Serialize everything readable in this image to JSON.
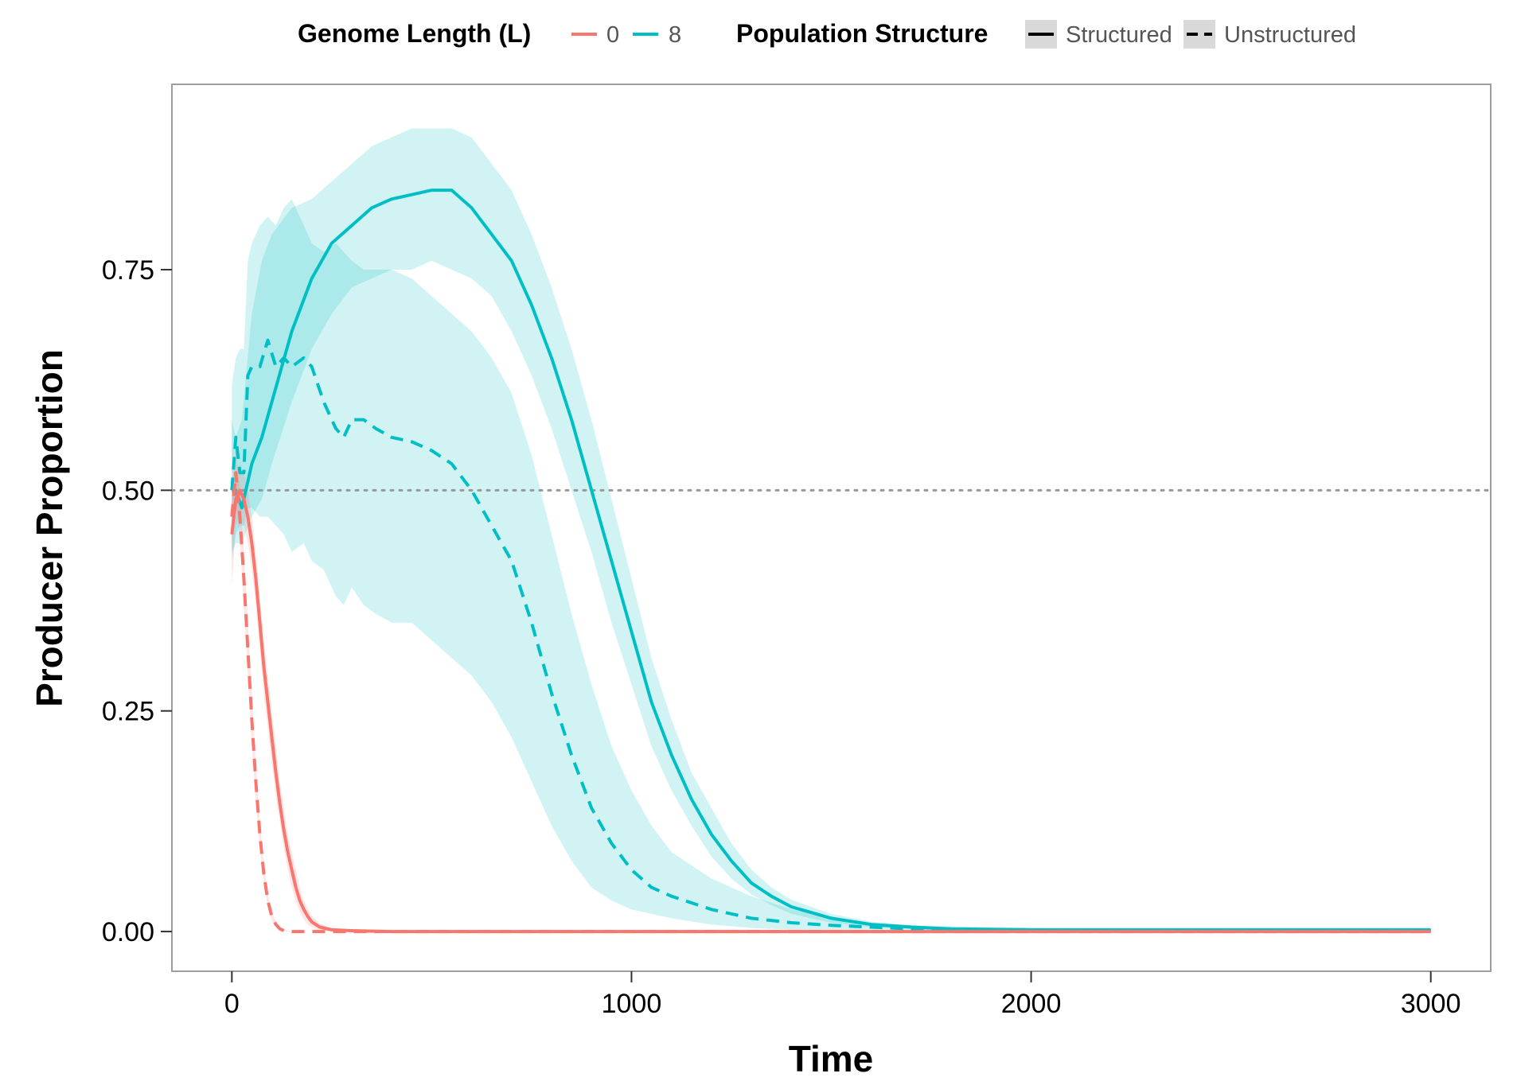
{
  "chart_data": {
    "type": "line",
    "title": "",
    "xlabel": "Time",
    "ylabel": "Producer Proportion",
    "xlim": [
      -150,
      3150
    ],
    "ylim": [
      -0.045,
      0.96
    ],
    "x_ticks": [
      0,
      1000,
      2000,
      3000
    ],
    "x_tick_labels": [
      "0",
      "1000",
      "2000",
      "3000"
    ],
    "y_ticks": [
      0,
      0.25,
      0.5,
      0.75
    ],
    "y_tick_labels": [
      "0.00",
      "0.25",
      "0.50",
      "0.75"
    ],
    "reference_line": {
      "y": 0.5,
      "style": "dotted",
      "color": "#999999"
    },
    "grid": false,
    "legend": {
      "placement": "top",
      "groups": [
        {
          "title": "Genome Length (L)",
          "items": [
            {
              "label": "0",
              "color": "#F8766D"
            },
            {
              "label": "8",
              "color": "#00BFC4"
            }
          ]
        },
        {
          "title": "Population Structure",
          "items": [
            {
              "label": "Structured",
              "linetype": "solid"
            },
            {
              "label": "Unstructured",
              "linetype": "dashed"
            }
          ]
        }
      ]
    },
    "series": [
      {
        "genome_length": "8",
        "structure": "Structured",
        "color": "#00BFC4",
        "linetype": "solid",
        "x": [
          0,
          10,
          25,
          50,
          75,
          100,
          150,
          200,
          250,
          300,
          350,
          400,
          450,
          500,
          550,
          600,
          650,
          700,
          750,
          800,
          850,
          900,
          950,
          1000,
          1050,
          1100,
          1150,
          1200,
          1250,
          1300,
          1350,
          1400,
          1500,
          1600,
          1700,
          1800,
          2000,
          2500,
          3000
        ],
        "y": [
          0.5,
          0.5,
          0.48,
          0.53,
          0.56,
          0.6,
          0.68,
          0.74,
          0.78,
          0.8,
          0.82,
          0.83,
          0.835,
          0.84,
          0.84,
          0.82,
          0.79,
          0.76,
          0.71,
          0.65,
          0.58,
          0.5,
          0.42,
          0.34,
          0.26,
          0.2,
          0.15,
          0.11,
          0.08,
          0.055,
          0.04,
          0.028,
          0.015,
          0.008,
          0.005,
          0.003,
          0.002,
          0.002,
          0.002
        ],
        "lower": [
          0.43,
          0.44,
          0.44,
          0.47,
          0.49,
          0.53,
          0.6,
          0.66,
          0.7,
          0.73,
          0.74,
          0.75,
          0.75,
          0.76,
          0.75,
          0.74,
          0.72,
          0.68,
          0.63,
          0.57,
          0.5,
          0.43,
          0.35,
          0.28,
          0.21,
          0.16,
          0.12,
          0.085,
          0.06,
          0.042,
          0.03,
          0.02,
          0.01,
          0.005,
          0.003,
          0.002,
          0.001,
          0.001,
          0.001
        ],
        "upper": [
          0.58,
          0.56,
          0.58,
          0.7,
          0.76,
          0.79,
          0.82,
          0.83,
          0.85,
          0.87,
          0.89,
          0.9,
          0.91,
          0.91,
          0.91,
          0.9,
          0.87,
          0.84,
          0.79,
          0.73,
          0.66,
          0.58,
          0.49,
          0.4,
          0.31,
          0.24,
          0.18,
          0.14,
          0.1,
          0.07,
          0.05,
          0.036,
          0.02,
          0.011,
          0.007,
          0.004,
          0.003,
          0.003,
          0.003
        ]
      },
      {
        "genome_length": "8",
        "structure": "Unstructured",
        "color": "#00BFC4",
        "linetype": "dashed",
        "x": [
          0,
          10,
          20,
          30,
          40,
          50,
          70,
          90,
          110,
          130,
          150,
          180,
          200,
          230,
          260,
          280,
          300,
          330,
          360,
          400,
          450,
          500,
          550,
          600,
          650,
          700,
          750,
          800,
          850,
          900,
          950,
          1000,
          1050,
          1100,
          1200,
          1300,
          1400,
          1500,
          1600,
          1700,
          2000,
          2500,
          3000
        ],
        "y": [
          0.5,
          0.56,
          0.52,
          0.52,
          0.63,
          0.64,
          0.64,
          0.67,
          0.64,
          0.65,
          0.64,
          0.65,
          0.64,
          0.6,
          0.57,
          0.56,
          0.58,
          0.58,
          0.57,
          0.56,
          0.555,
          0.545,
          0.53,
          0.5,
          0.46,
          0.42,
          0.35,
          0.27,
          0.2,
          0.14,
          0.1,
          0.07,
          0.05,
          0.04,
          0.025,
          0.015,
          0.01,
          0.007,
          0.005,
          0.003,
          0.002,
          0.001,
          0.001
        ],
        "lower": [
          0.42,
          0.45,
          0.46,
          0.46,
          0.48,
          0.48,
          0.47,
          0.47,
          0.46,
          0.45,
          0.43,
          0.44,
          0.42,
          0.41,
          0.38,
          0.37,
          0.39,
          0.37,
          0.36,
          0.35,
          0.35,
          0.33,
          0.31,
          0.29,
          0.26,
          0.22,
          0.17,
          0.12,
          0.08,
          0.05,
          0.035,
          0.025,
          0.02,
          0.015,
          0.008,
          0.004,
          0.002,
          0.001,
          0.0,
          0.0,
          0.0,
          0.0,
          0.0
        ],
        "upper": [
          0.62,
          0.65,
          0.66,
          0.66,
          0.76,
          0.78,
          0.8,
          0.81,
          0.8,
          0.82,
          0.83,
          0.8,
          0.78,
          0.77,
          0.78,
          0.77,
          0.76,
          0.75,
          0.75,
          0.75,
          0.74,
          0.72,
          0.7,
          0.68,
          0.65,
          0.61,
          0.54,
          0.45,
          0.36,
          0.28,
          0.21,
          0.16,
          0.12,
          0.09,
          0.06,
          0.04,
          0.025,
          0.016,
          0.01,
          0.007,
          0.004,
          0.002,
          0.002
        ]
      },
      {
        "genome_length": "0",
        "structure": "Structured",
        "color": "#F8766D",
        "linetype": "solid",
        "x": [
          0,
          10,
          20,
          30,
          40,
          50,
          60,
          70,
          80,
          90,
          100,
          110,
          120,
          130,
          140,
          150,
          160,
          170,
          180,
          190,
          200,
          220,
          250,
          300,
          400,
          600,
          1000,
          2000,
          3000
        ],
        "y": [
          0.45,
          0.49,
          0.5,
          0.49,
          0.47,
          0.44,
          0.4,
          0.35,
          0.3,
          0.26,
          0.22,
          0.18,
          0.145,
          0.115,
          0.09,
          0.07,
          0.05,
          0.035,
          0.025,
          0.017,
          0.011,
          0.005,
          0.002,
          0.001,
          0.0,
          0.0,
          0.0,
          0.0,
          0.0
        ],
        "lower": [
          0.39,
          0.46,
          0.47,
          0.46,
          0.44,
          0.41,
          0.37,
          0.32,
          0.27,
          0.23,
          0.19,
          0.155,
          0.125,
          0.095,
          0.07,
          0.05,
          0.035,
          0.022,
          0.014,
          0.008,
          0.005,
          0.002,
          0.0,
          0.0,
          0.0,
          0.0,
          0.0,
          0.0,
          0.0
        ],
        "upper": [
          0.51,
          0.52,
          0.53,
          0.52,
          0.5,
          0.47,
          0.43,
          0.38,
          0.33,
          0.29,
          0.25,
          0.21,
          0.17,
          0.14,
          0.11,
          0.09,
          0.07,
          0.05,
          0.036,
          0.026,
          0.018,
          0.009,
          0.004,
          0.002,
          0.0,
          0.0,
          0.0,
          0.0,
          0.0
        ]
      },
      {
        "genome_length": "0",
        "structure": "Unstructured",
        "color": "#F8766D",
        "linetype": "dashed",
        "x": [
          0,
          10,
          20,
          30,
          40,
          50,
          60,
          70,
          80,
          90,
          100,
          110,
          120,
          130,
          150,
          200,
          300,
          1000,
          2000,
          3000
        ],
        "y": [
          0.47,
          0.52,
          0.47,
          0.4,
          0.32,
          0.24,
          0.17,
          0.11,
          0.065,
          0.035,
          0.017,
          0.008,
          0.003,
          0.001,
          0.0,
          0.0,
          0.0,
          0.0,
          0.0,
          0.0
        ],
        "lower": [
          0.44,
          0.49,
          0.44,
          0.37,
          0.29,
          0.21,
          0.15,
          0.095,
          0.055,
          0.028,
          0.012,
          0.005,
          0.002,
          0.0,
          0.0,
          0.0,
          0.0,
          0.0,
          0.0,
          0.0
        ],
        "upper": [
          0.5,
          0.55,
          0.5,
          0.43,
          0.35,
          0.27,
          0.19,
          0.125,
          0.075,
          0.042,
          0.022,
          0.011,
          0.005,
          0.002,
          0.0,
          0.0,
          0.0,
          0.0,
          0.0,
          0.0
        ]
      }
    ]
  }
}
